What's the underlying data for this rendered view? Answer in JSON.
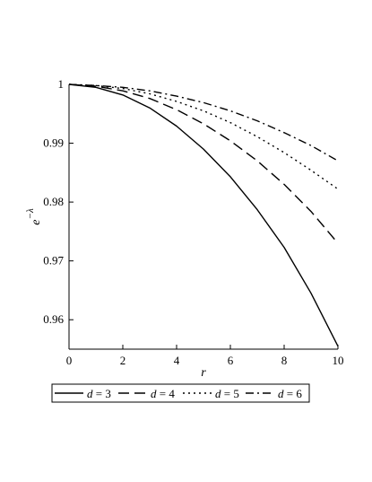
{
  "chart_data": {
    "type": "line",
    "title": "",
    "xlabel": "r",
    "ylabel_base": "e",
    "ylabel_exponent": "−λ",
    "xlim": [
      0,
      10
    ],
    "ylim": [
      0.955,
      1.0
    ],
    "xticks": [
      0,
      2,
      4,
      6,
      8,
      10
    ],
    "xtick_labels": [
      "0",
      "2",
      "4",
      "6",
      "8",
      "10"
    ],
    "yticks": [
      0.96,
      0.97,
      0.98,
      0.99,
      1.0
    ],
    "ytick_labels": [
      "0.96",
      "0.97",
      "0.98",
      "0.99",
      "1"
    ],
    "grid": false,
    "legend_position": "bottom",
    "x": [
      0,
      1,
      2,
      3,
      4,
      5,
      6,
      7,
      8,
      9,
      10
    ],
    "series": [
      {
        "name_var": "d",
        "name_rest": " = 3",
        "dash": "solid",
        "values": [
          1.0,
          0.9995,
          0.9982,
          0.996,
          0.9929,
          0.989,
          0.9843,
          0.9787,
          0.9723,
          0.9645,
          0.9555
        ]
      },
      {
        "name_var": "d",
        "name_rest": " = 4",
        "dash": "dash",
        "values": [
          1.0,
          0.9997,
          0.9989,
          0.9976,
          0.9957,
          0.9933,
          0.9904,
          0.987,
          0.983,
          0.9784,
          0.973
        ]
      },
      {
        "name_var": "d",
        "name_rest": " = 5",
        "dash": "dot",
        "values": [
          1.0,
          0.9998,
          0.9993,
          0.9984,
          0.9971,
          0.9955,
          0.9935,
          0.9911,
          0.9884,
          0.9854,
          0.9822
        ]
      },
      {
        "name_var": "d",
        "name_rest": " = 6",
        "dash": "dashdot",
        "values": [
          1.0,
          0.9998,
          0.9995,
          0.9989,
          0.998,
          0.9969,
          0.9955,
          0.9938,
          0.9918,
          0.9896,
          0.987
        ]
      }
    ]
  }
}
